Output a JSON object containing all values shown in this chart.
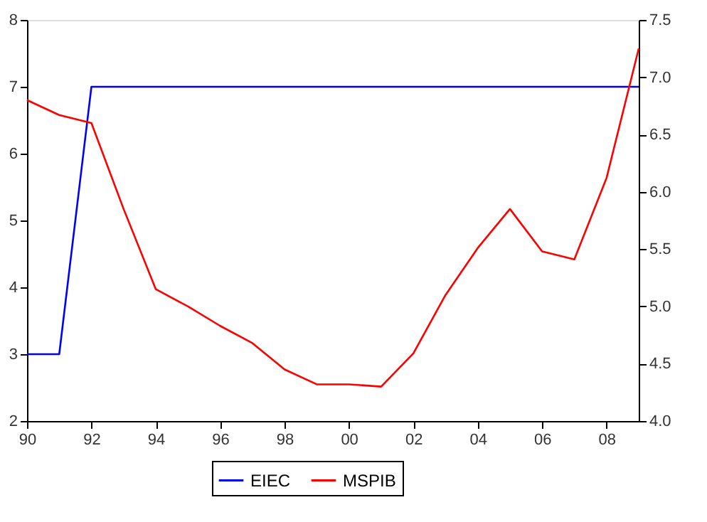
{
  "chart_data": {
    "type": "line",
    "x": [
      1990,
      1991,
      1992,
      1993,
      1994,
      1995,
      1996,
      1997,
      1998,
      1999,
      2000,
      2001,
      2002,
      2003,
      2004,
      2005,
      2006,
      2007,
      2008,
      2009
    ],
    "series": [
      {
        "name": "EIEC",
        "color": "#0000ff",
        "values": [
          3,
          3,
          7,
          7,
          7,
          7,
          7,
          7,
          7,
          7,
          7,
          7,
          7,
          7,
          7,
          7,
          7,
          7,
          7,
          7
        ]
      },
      {
        "name": "MSPIB",
        "color": "#ff0000",
        "axis": "y2",
        "values": [
          6.8,
          6.67,
          6.6,
          5.85,
          5.15,
          5.0,
          4.83,
          4.68,
          4.45,
          4.32,
          4.32,
          4.3,
          4.59,
          5.1,
          5.51,
          5.85,
          5.48,
          5.41,
          6.12,
          7.25
        ]
      }
    ],
    "xlim": [
      1990,
      2009
    ],
    "xticks": [
      {
        "value": 1990,
        "label": "90"
      },
      {
        "value": 1992,
        "label": "92"
      },
      {
        "value": 1994,
        "label": "94"
      },
      {
        "value": 1996,
        "label": "96"
      },
      {
        "value": 1998,
        "label": "98"
      },
      {
        "value": 2000,
        "label": "00"
      },
      {
        "value": 2002,
        "label": "02"
      },
      {
        "value": 2004,
        "label": "04"
      },
      {
        "value": 2006,
        "label": "06"
      },
      {
        "value": 2008,
        "label": "08"
      }
    ],
    "ylim": [
      2,
      8
    ],
    "yticks": [
      2,
      3,
      4,
      5,
      6,
      7,
      8
    ],
    "y2lim": [
      4.0,
      7.5
    ],
    "y2ticks": [
      {
        "value": 4.0,
        "label": "4.0"
      },
      {
        "value": 4.5,
        "label": "4.5"
      },
      {
        "value": 5.0,
        "label": "5.0"
      },
      {
        "value": 5.5,
        "label": "5.5"
      },
      {
        "value": 6.0,
        "label": "6.0"
      },
      {
        "value": 6.5,
        "label": "6.5"
      },
      {
        "value": 7.0,
        "label": "7.0"
      },
      {
        "value": 7.5,
        "label": "7.5"
      }
    ],
    "grid": false,
    "legend": "bottom",
    "marker": "none",
    "line_style": "solid"
  }
}
